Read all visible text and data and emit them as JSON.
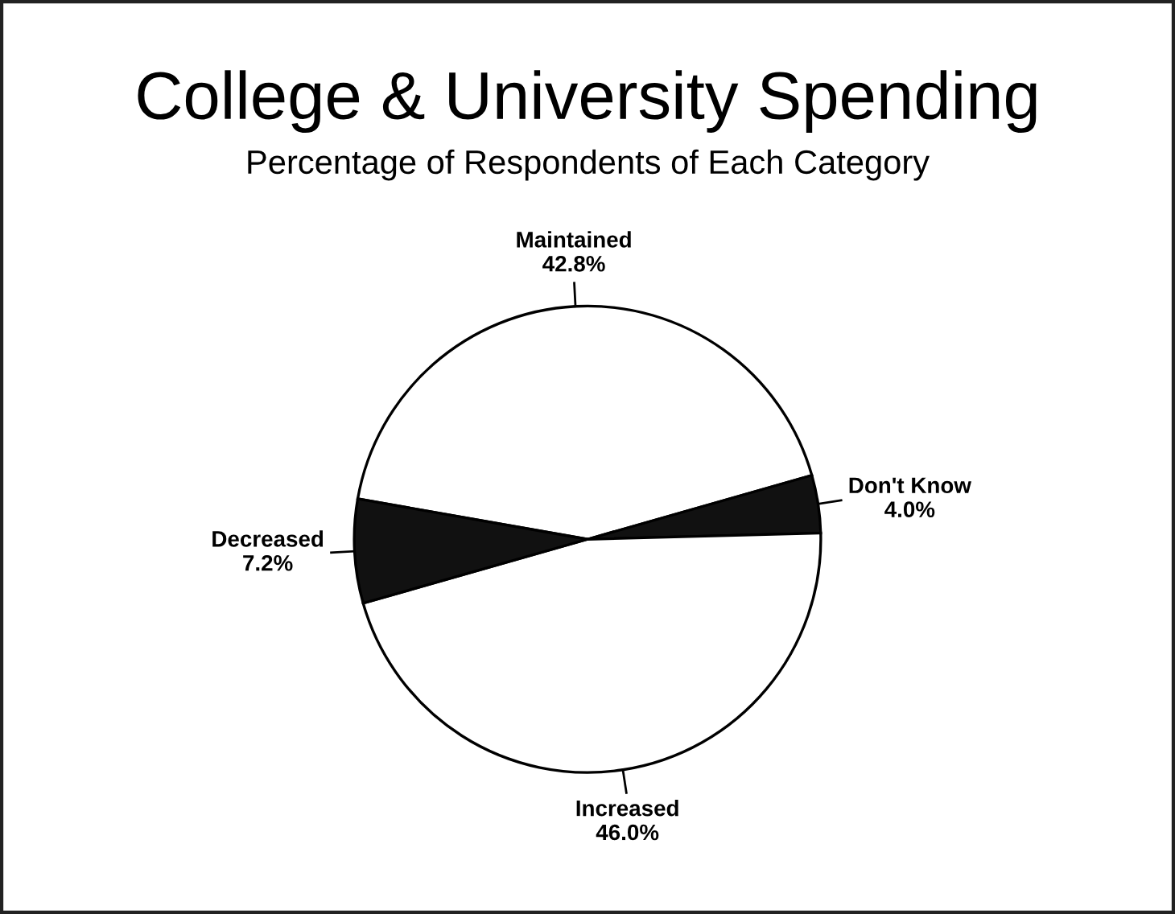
{
  "chart_data": {
    "type": "pie",
    "title": "College & University Spending",
    "subtitle": "Percentage of Respondents of Each Category",
    "categories": [
      "Maintained",
      "Don't Know",
      "Increased",
      "Decreased"
    ],
    "values": [
      42.8,
      4.0,
      46.0,
      7.2
    ],
    "colors": [
      "#ffffff",
      "#111111",
      "#ffffff",
      "#111111"
    ],
    "value_labels": [
      "42.8%",
      "4.0%",
      "46.0%",
      "7.2%"
    ]
  }
}
